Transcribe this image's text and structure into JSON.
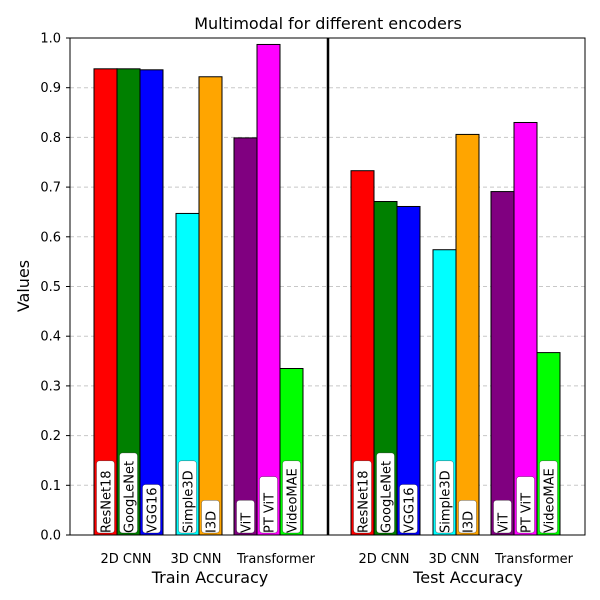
{
  "chart_data": {
    "type": "bar",
    "title": "Multimodal for different encoders",
    "ylabel": "Values",
    "ylim": [
      0,
      1.0
    ],
    "yticks": [
      "0.0",
      "0.1",
      "0.2",
      "0.3",
      "0.4",
      "0.5",
      "0.6",
      "0.7",
      "0.8",
      "0.9",
      "1.0"
    ],
    "grid": "y dashed",
    "panels": [
      {
        "label": "Train Accuracy",
        "groups": [
          {
            "label": "2D CNN",
            "bars": [
              {
                "name": "ResNet18",
                "value": 0.938,
                "color": "#ff0000"
              },
              {
                "name": "GoogLeNet",
                "value": 0.938,
                "color": "#008000"
              },
              {
                "name": "VGG16",
                "value": 0.936,
                "color": "#0000ff"
              }
            ]
          },
          {
            "label": "3D CNN",
            "bars": [
              {
                "name": "Simple3D",
                "value": 0.647,
                "color": "#00ffff"
              },
              {
                "name": "I3D",
                "value": 0.922,
                "color": "#ffa500"
              }
            ]
          },
          {
            "label": "Transformer",
            "bars": [
              {
                "name": "ViT",
                "value": 0.799,
                "color": "#800080"
              },
              {
                "name": "PT ViT",
                "value": 0.987,
                "color": "#ff00ff"
              },
              {
                "name": "VideoMAE",
                "value": 0.335,
                "color": "#00ff00"
              }
            ]
          }
        ]
      },
      {
        "label": "Test Accuracy",
        "groups": [
          {
            "label": "2D CNN",
            "bars": [
              {
                "name": "ResNet18",
                "value": 0.733,
                "color": "#ff0000"
              },
              {
                "name": "GoogLeNet",
                "value": 0.671,
                "color": "#008000"
              },
              {
                "name": "VGG16",
                "value": 0.661,
                "color": "#0000ff"
              }
            ]
          },
          {
            "label": "3D CNN",
            "bars": [
              {
                "name": "Simple3D",
                "value": 0.574,
                "color": "#00ffff"
              },
              {
                "name": "I3D",
                "value": 0.806,
                "color": "#ffa500"
              }
            ]
          },
          {
            "label": "Transformer",
            "bars": [
              {
                "name": "ViT",
                "value": 0.691,
                "color": "#800080"
              },
              {
                "name": "PT ViT",
                "value": 0.83,
                "color": "#ff00ff"
              },
              {
                "name": "VideoMAE",
                "value": 0.367,
                "color": "#00ff00"
              }
            ]
          }
        ]
      }
    ]
  }
}
